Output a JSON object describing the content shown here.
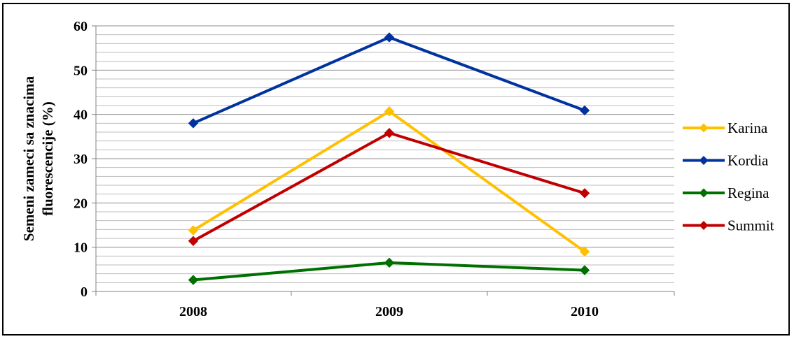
{
  "chart_data": {
    "type": "line",
    "title": "",
    "xlabel": "",
    "ylabel": "Semeni  zameci sa znacima fluorescencije (%)",
    "ylabel_lines": [
      "Semeni  zameci sa znacima",
      "fluorescencije (%)"
    ],
    "categories": [
      "2008",
      "2009",
      "2010"
    ],
    "ylim": [
      0,
      60
    ],
    "yticks": [
      0,
      10,
      20,
      30,
      40,
      50,
      60
    ],
    "grid": true,
    "minor_gridlines_per_major": 5,
    "legend_position": "right",
    "series": [
      {
        "name": "Karina",
        "color": "#FFC000",
        "values": [
          13.8,
          40.7,
          9.0
        ]
      },
      {
        "name": "Kordia",
        "color": "#0033A0",
        "values": [
          38.0,
          57.4,
          40.9
        ]
      },
      {
        "name": "Regina",
        "color": "#007000",
        "values": [
          2.6,
          6.5,
          4.8
        ]
      },
      {
        "name": "Summit",
        "color": "#C00000",
        "values": [
          11.4,
          35.8,
          22.2
        ]
      }
    ]
  }
}
